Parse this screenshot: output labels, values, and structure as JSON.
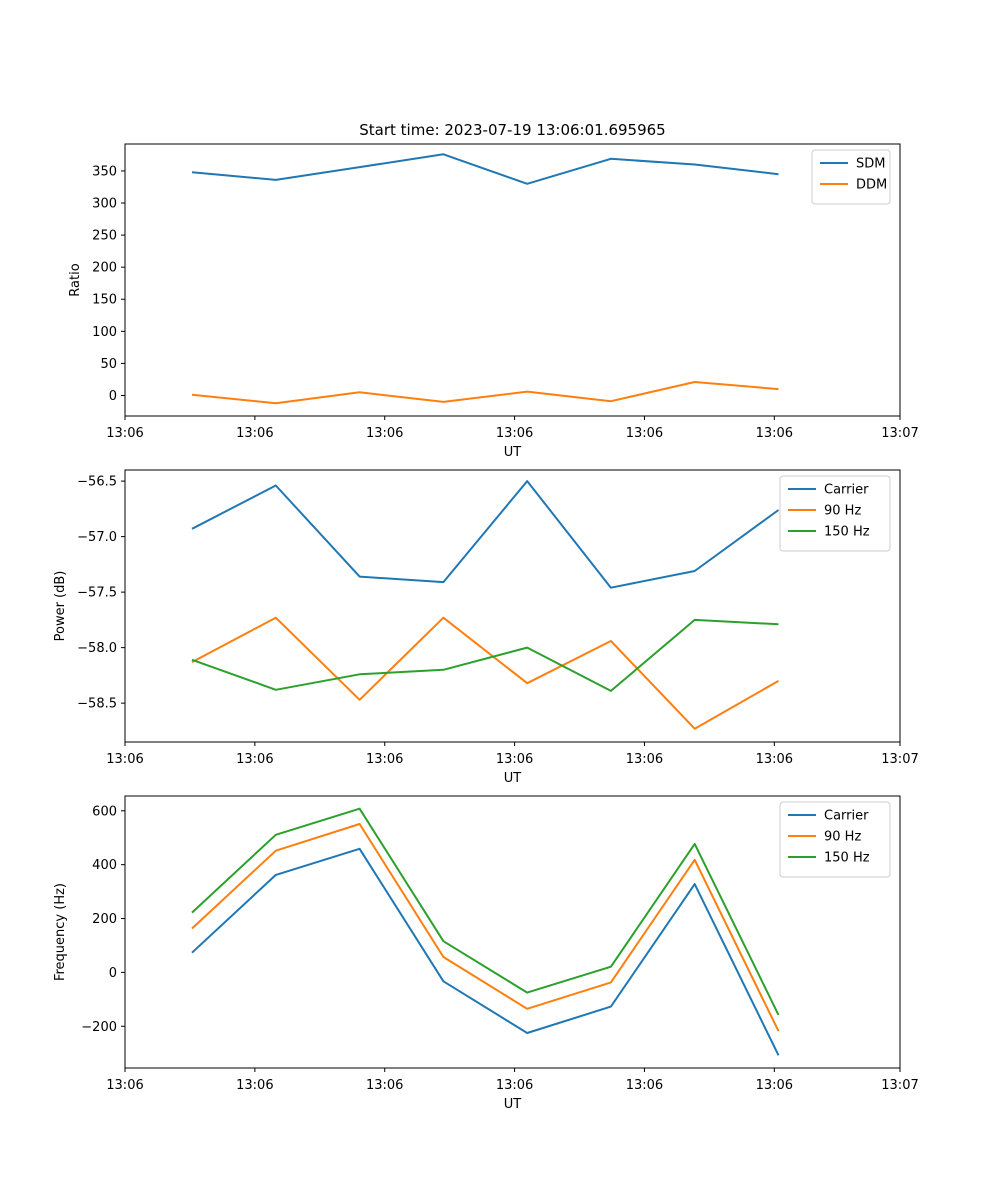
{
  "chart_data": [
    {
      "type": "line",
      "title": "Start time: 2023-07-19 13:06:01.695965",
      "xlabel": "UT",
      "ylabel": "Ratio",
      "x": [
        1,
        2,
        3,
        4,
        5,
        6,
        7,
        8
      ],
      "xlim": [
        0.2,
        9.45
      ],
      "xticks": [
        0.2,
        1.75,
        3.3,
        4.85,
        6.4,
        7.95,
        9.45
      ],
      "xtick_labels": [
        "13:06",
        "13:06",
        "13:06",
        "13:06",
        "13:06",
        "13:06",
        "13:07"
      ],
      "ylim": [
        -32,
        392
      ],
      "yticks": [
        0,
        50,
        100,
        150,
        200,
        250,
        300,
        350
      ],
      "ytick_labels": [
        "0",
        "50",
        "100",
        "150",
        "200",
        "250",
        "300",
        "350"
      ],
      "legend_position": "top-right",
      "series": [
        {
          "name": "SDM",
          "color": "#1f77b4",
          "values": [
            348,
            336,
            356,
            376,
            330,
            369,
            360,
            345
          ]
        },
        {
          "name": "DDM",
          "color": "#ff7f0e",
          "values": [
            1,
            -12,
            5,
            -10,
            6,
            -9,
            21,
            10
          ]
        }
      ]
    },
    {
      "type": "line",
      "title": "",
      "xlabel": "UT",
      "ylabel": "Power (dB)",
      "x": [
        1,
        2,
        3,
        4,
        5,
        6,
        7,
        8
      ],
      "xlim": [
        0.2,
        9.45
      ],
      "xticks": [
        0.2,
        1.75,
        3.3,
        4.85,
        6.4,
        7.95,
        9.45
      ],
      "xtick_labels": [
        "13:06",
        "13:06",
        "13:06",
        "13:06",
        "13:06",
        "13:06",
        "13:07"
      ],
      "ylim": [
        -58.85,
        -56.4
      ],
      "yticks": [
        -56.5,
        -57.0,
        -57.5,
        -58.0,
        -58.5
      ],
      "ytick_labels": [
        "−56.5",
        "−57.0",
        "−57.5",
        "−58.0",
        "−58.5"
      ],
      "legend_position": "top-right",
      "series": [
        {
          "name": "Carrier",
          "color": "#1f77b4",
          "values": [
            -56.93,
            -56.54,
            -57.36,
            -57.41,
            -56.5,
            -57.46,
            -57.31,
            -56.76
          ]
        },
        {
          "name": "90 Hz",
          "color": "#ff7f0e",
          "values": [
            -58.13,
            -57.73,
            -58.47,
            -57.73,
            -58.32,
            -57.94,
            -58.73,
            -58.3
          ]
        },
        {
          "name": "150 Hz",
          "color": "#2ca02c",
          "values": [
            -58.11,
            -58.38,
            -58.24,
            -58.2,
            -58.0,
            -58.39,
            -57.75,
            -57.79
          ]
        }
      ]
    },
    {
      "type": "line",
      "title": "",
      "xlabel": "UT",
      "ylabel": "Frequency (Hz)",
      "x": [
        1,
        2,
        3,
        4,
        5,
        6,
        7,
        8
      ],
      "xlim": [
        0.2,
        9.45
      ],
      "xticks": [
        0.2,
        1.75,
        3.3,
        4.85,
        6.4,
        7.95,
        9.45
      ],
      "xtick_labels": [
        "13:06",
        "13:06",
        "13:06",
        "13:06",
        "13:06",
        "13:06",
        "13:07"
      ],
      "ylim": [
        -355,
        655
      ],
      "yticks": [
        -200,
        0,
        200,
        400,
        600
      ],
      "ytick_labels": [
        "−200",
        "0",
        "200",
        "400",
        "600"
      ],
      "legend_position": "top-right",
      "series": [
        {
          "name": "Carrier",
          "color": "#1f77b4",
          "values": [
            73,
            362,
            459,
            -33,
            -225,
            -127,
            328,
            -308
          ]
        },
        {
          "name": "90 Hz",
          "color": "#ff7f0e",
          "values": [
            163,
            452,
            551,
            57,
            -135,
            -37,
            418,
            -218
          ]
        },
        {
          "name": "150 Hz",
          "color": "#2ca02c",
          "values": [
            222,
            511,
            608,
            116,
            -75,
            21,
            477,
            -158
          ]
        }
      ]
    }
  ]
}
